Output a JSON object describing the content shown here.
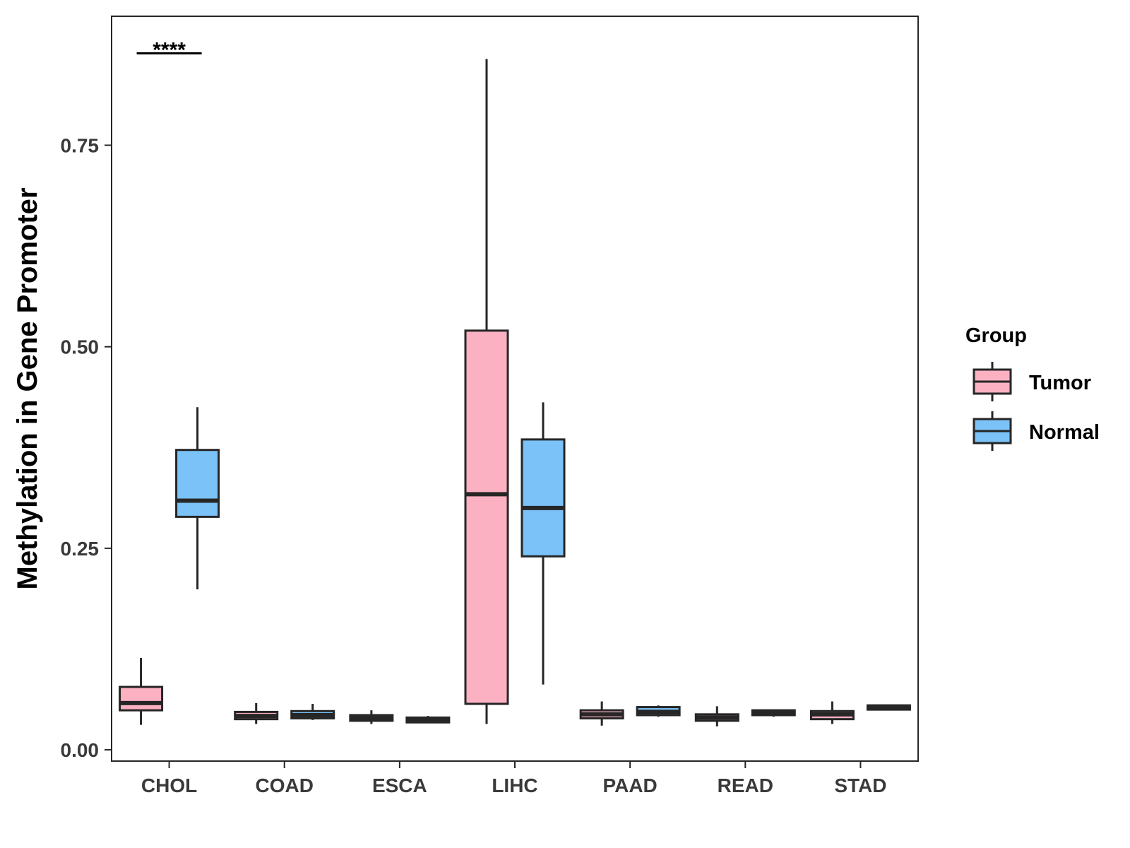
{
  "chart_data": {
    "type": "boxplot",
    "title": "",
    "xlabel": "",
    "ylabel": "Methylation in Gene Promoter",
    "ylim": [
      -0.014,
      0.91
    ],
    "yticks": [
      0.0,
      0.25,
      0.5,
      0.75
    ],
    "ytick_labels": [
      "0.00",
      "0.25",
      "0.50",
      "0.75"
    ],
    "categories": [
      "CHOL",
      "COAD",
      "ESCA",
      "LIHC",
      "PAAD",
      "READ",
      "STAD"
    ],
    "legend": {
      "title": "Group",
      "position": "right",
      "entries": [
        "Tumor",
        "Normal"
      ]
    },
    "colors": {
      "Tumor": "#fcb1c3",
      "Normal": "#7ac2f7",
      "outline": "#262626"
    },
    "series": [
      {
        "name": "Tumor",
        "boxes": [
          {
            "category": "CHOL",
            "min": 0.031,
            "q1": 0.049,
            "median": 0.058,
            "q3": 0.078,
            "max": 0.114
          },
          {
            "category": "COAD",
            "min": 0.032,
            "q1": 0.038,
            "median": 0.042,
            "q3": 0.047,
            "max": 0.058
          },
          {
            "category": "ESCA",
            "min": 0.032,
            "q1": 0.036,
            "median": 0.039,
            "q3": 0.043,
            "max": 0.049
          },
          {
            "category": "LIHC",
            "min": 0.032,
            "q1": 0.057,
            "median": 0.317,
            "q3": 0.52,
            "max": 0.857
          },
          {
            "category": "PAAD",
            "min": 0.03,
            "q1": 0.039,
            "median": 0.044,
            "q3": 0.049,
            "max": 0.06
          },
          {
            "category": "READ",
            "min": 0.029,
            "q1": 0.036,
            "median": 0.04,
            "q3": 0.044,
            "max": 0.054
          },
          {
            "category": "STAD",
            "min": 0.032,
            "q1": 0.038,
            "median": 0.044,
            "q3": 0.048,
            "max": 0.06
          }
        ]
      },
      {
        "name": "Normal",
        "boxes": [
          {
            "category": "CHOL",
            "min": 0.199,
            "q1": 0.289,
            "median": 0.309,
            "q3": 0.372,
            "max": 0.425
          },
          {
            "category": "COAD",
            "min": 0.037,
            "q1": 0.039,
            "median": 0.043,
            "q3": 0.048,
            "max": 0.057
          },
          {
            "category": "ESCA",
            "min": 0.034,
            "q1": 0.034,
            "median": 0.037,
            "q3": 0.04,
            "max": 0.042
          },
          {
            "category": "LIHC",
            "min": 0.081,
            "q1": 0.24,
            "median": 0.3,
            "q3": 0.385,
            "max": 0.431
          },
          {
            "category": "PAAD",
            "min": 0.041,
            "q1": 0.043,
            "median": 0.047,
            "q3": 0.053,
            "max": 0.055
          },
          {
            "category": "READ",
            "min": 0.041,
            "q1": 0.043,
            "median": 0.046,
            "q3": 0.049,
            "max": 0.05
          },
          {
            "category": "STAD",
            "min": 0.05,
            "q1": 0.05,
            "median": 0.052,
            "q3": 0.055,
            "max": 0.055
          }
        ]
      }
    ],
    "annotations": [
      {
        "category": "CHOL",
        "text": "****",
        "y": 0.864
      }
    ]
  }
}
